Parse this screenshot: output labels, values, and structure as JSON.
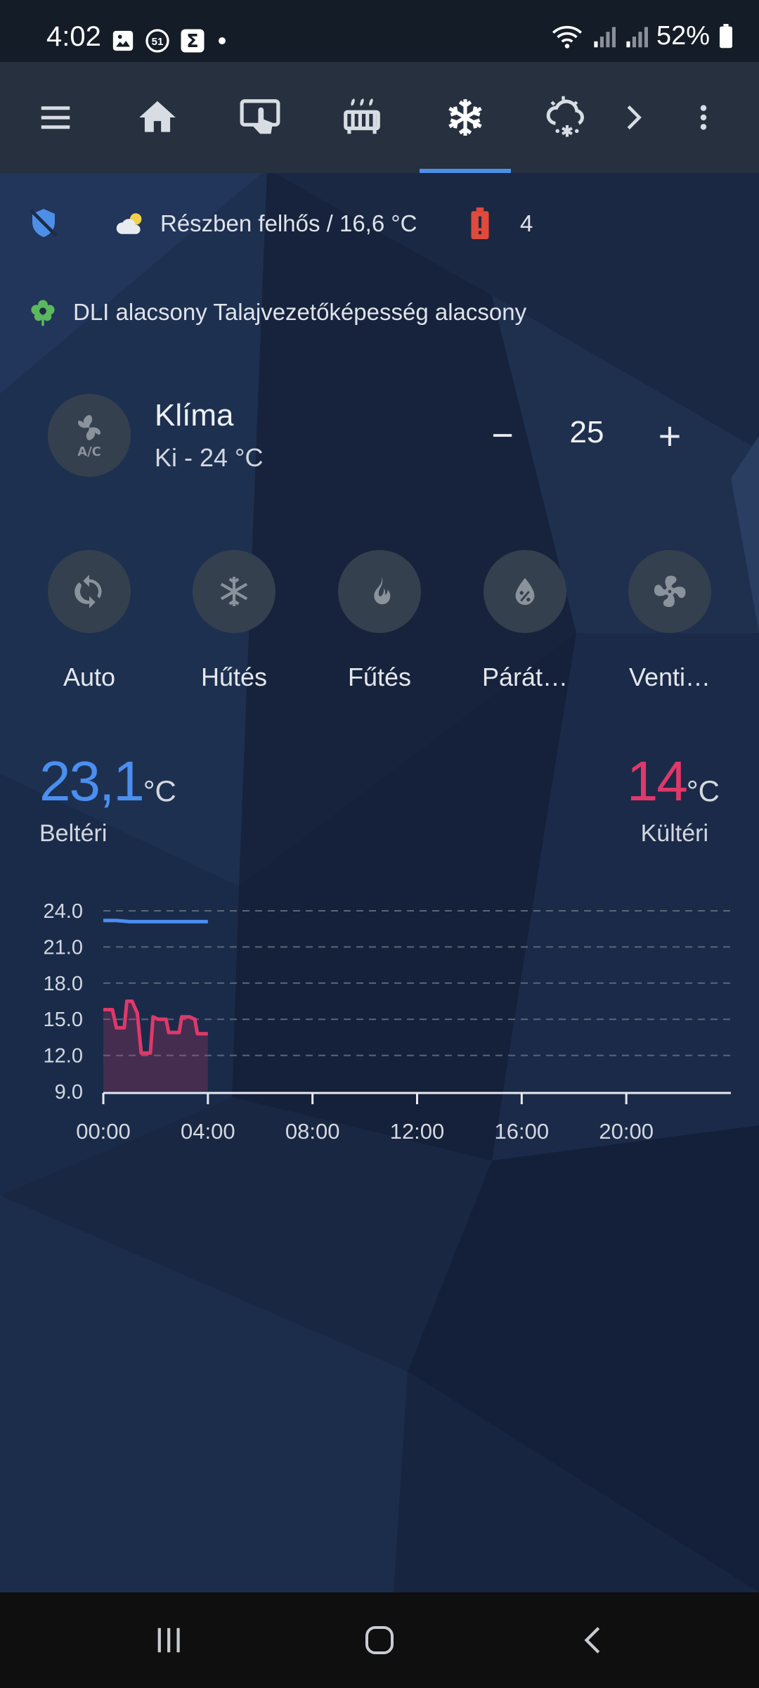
{
  "status_bar": {
    "time": "4:02",
    "battery": "52%"
  },
  "top_nav": {
    "tabs": [
      {
        "icon": "hamburger-menu-icon"
      },
      {
        "icon": "home-icon"
      },
      {
        "icon": "touch-screen-icon"
      },
      {
        "icon": "radiator-icon"
      },
      {
        "icon": "snowflake-icon",
        "active": true
      },
      {
        "icon": "weather-snowy-icon"
      },
      {
        "icon": "chevron-right-icon"
      },
      {
        "icon": "more-vertical-icon"
      }
    ]
  },
  "info": {
    "weather": "Részben felhős / 16,6 °C",
    "battery_alert_count": "4",
    "plant_alert": "DLI alacsony Talajvezetőképesség alacsony"
  },
  "climate": {
    "name": "Klíma",
    "status": "Ki - 24 °C",
    "target_temp": "25",
    "minus": "−",
    "plus": "+",
    "modes": [
      {
        "label": "Auto",
        "icon": "autorenew-icon"
      },
      {
        "label": "Hűtés",
        "icon": "snowflake-icon"
      },
      {
        "label": "Fűtés",
        "icon": "fire-icon"
      },
      {
        "label": "Párát…",
        "icon": "water-percent-icon"
      },
      {
        "label": "Venti…",
        "icon": "fan-icon"
      }
    ]
  },
  "temps": {
    "indoor_value": "23,1",
    "indoor_unit": "°C",
    "indoor_label": "Beltéri",
    "outdoor_value": "14",
    "outdoor_unit": "°C",
    "outdoor_label": "Kültéri"
  },
  "colors": {
    "indoor": "#4a8ff0",
    "outdoor": "#e0386a",
    "accent": "#4d8fe6"
  },
  "chart_data": {
    "type": "line",
    "title": "",
    "xlabel": "",
    "ylabel": "",
    "x_ticks": [
      "00:00",
      "04:00",
      "08:00",
      "12:00",
      "16:00",
      "20:00"
    ],
    "y_ticks": [
      "24.0",
      "21.0",
      "18.0",
      "15.0",
      "12.0",
      "9.0"
    ],
    "xlim": [
      0,
      24
    ],
    "ylim": [
      9,
      24
    ],
    "grid": true,
    "series": [
      {
        "name": "",
        "color": "#4a8ff0",
        "x": [
          0,
          0.5,
          1,
          1.5,
          2,
          2.5,
          3,
          3.5,
          4
        ],
        "y": [
          23.2,
          23.2,
          23.1,
          23.1,
          23.1,
          23.1,
          23.1,
          23.1,
          23.1
        ]
      },
      {
        "name": "",
        "color": "#e0386a",
        "fill": true,
        "x": [
          0,
          0.35,
          0.5,
          0.8,
          0.9,
          1.1,
          1.3,
          1.45,
          1.6,
          1.8,
          1.9,
          2.1,
          2.4,
          2.5,
          2.9,
          3.0,
          3.3,
          3.5,
          3.6,
          4.0
        ],
        "y": [
          15.8,
          15.8,
          14.3,
          14.3,
          16.5,
          16.5,
          15.5,
          12.2,
          12.2,
          12.2,
          15.2,
          15.0,
          15.0,
          13.9,
          13.9,
          15.2,
          15.2,
          15.0,
          13.8,
          13.8
        ]
      }
    ]
  }
}
